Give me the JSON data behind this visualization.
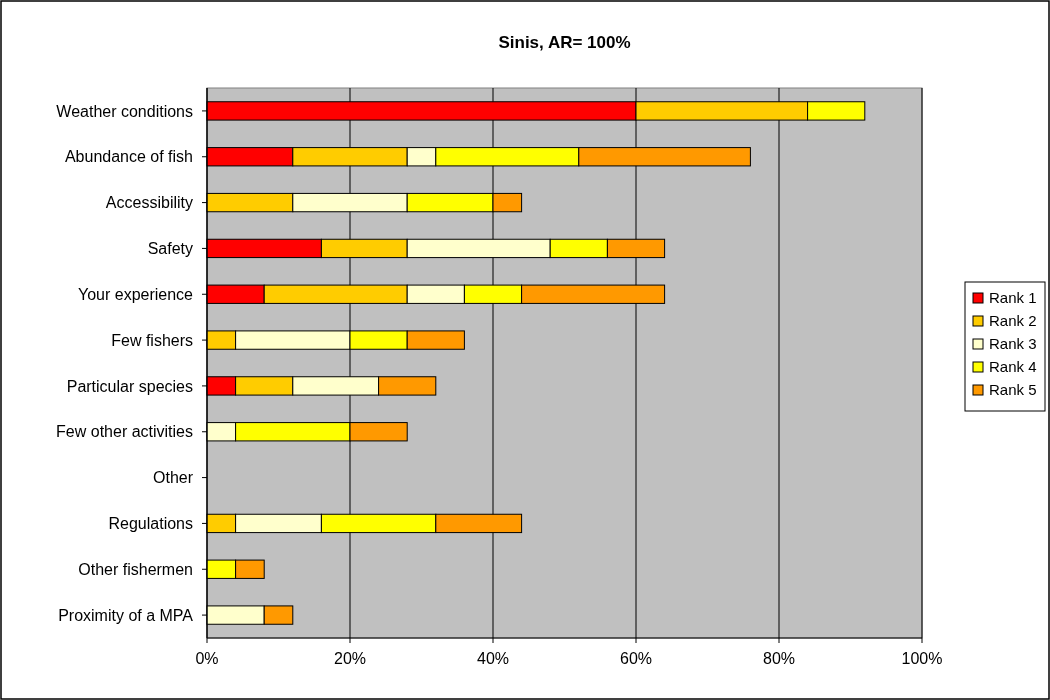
{
  "chart_data": {
    "type": "bar",
    "title": "Sinis, AR= 100%",
    "orientation": "horizontal",
    "stacked": true,
    "categories": [
      "Weather conditions",
      "Abundance of fish",
      "Accessibility",
      "Safety",
      "Your experience",
      "Few fishers",
      "Particular species",
      "Few other activities",
      "Other",
      "Regulations",
      "Other fishermen",
      "Proximity of a MPA"
    ],
    "series": [
      {
        "name": "Rank 1",
        "color": "#ff0000",
        "values": [
          60,
          12,
          0,
          16,
          8,
          0,
          4,
          0,
          0,
          0,
          0,
          0
        ]
      },
      {
        "name": "Rank 2",
        "color": "#ffcc00",
        "values": [
          24,
          16,
          12,
          12,
          20,
          4,
          8,
          0,
          0,
          4,
          0,
          0
        ]
      },
      {
        "name": "Rank 3",
        "color": "#ffffcc",
        "values": [
          0,
          4,
          16,
          20,
          8,
          16,
          12,
          4,
          0,
          12,
          0,
          8
        ]
      },
      {
        "name": "Rank 4",
        "color": "#ffff00",
        "values": [
          8,
          20,
          12,
          8,
          8,
          8,
          0,
          16,
          0,
          16,
          4,
          0
        ]
      },
      {
        "name": "Rank 5",
        "color": "#ff9900",
        "values": [
          0,
          24,
          4,
          8,
          20,
          8,
          8,
          8,
          0,
          12,
          4,
          4
        ]
      }
    ],
    "xlim": [
      0,
      100
    ],
    "xticks": [
      {
        "value": 0,
        "label": "0%"
      },
      {
        "value": 20,
        "label": "20%"
      },
      {
        "value": 40,
        "label": "40%"
      },
      {
        "value": 60,
        "label": "60%"
      },
      {
        "value": 80,
        "label": "80%"
      },
      {
        "value": 100,
        "label": "100%"
      }
    ],
    "grid": "x",
    "legend": "right"
  }
}
